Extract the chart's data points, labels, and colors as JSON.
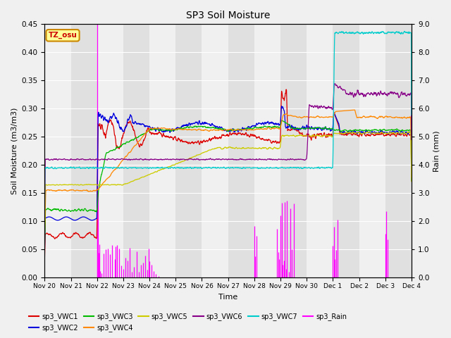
{
  "title": "SP3 Soil Moisture",
  "ylabel_left": "Soil Moisture (m3/m3)",
  "ylabel_right": "Rain (mm)",
  "xlabel": "Time",
  "ylim_left": [
    0.0,
    0.45
  ],
  "ylim_right": [
    0.0,
    9.0
  ],
  "yticks_left": [
    0.0,
    0.05,
    0.1,
    0.15,
    0.2,
    0.25,
    0.3,
    0.35,
    0.4,
    0.45
  ],
  "yticks_right": [
    0.0,
    1.0,
    2.0,
    3.0,
    4.0,
    5.0,
    6.0,
    7.0,
    8.0,
    9.0
  ],
  "background_color": "#f0f0f0",
  "plot_bg_light": "#e8e8e8",
  "plot_bg_dark": "#d0d0d0",
  "colors": {
    "VWC1": "#dd0000",
    "VWC2": "#0000dd",
    "VWC3": "#00bb00",
    "VWC4": "#ff8800",
    "VWC5": "#cccc00",
    "VWC6": "#880088",
    "VWC7": "#00cccc",
    "Rain": "#ff00ff"
  },
  "tz_label": "TZ_osu",
  "tz_bg": "#ffff99",
  "tz_border": "#cc8800",
  "tick_labels": [
    "Nov 20",
    "Nov 21",
    "Nov 22",
    "Nov 23",
    "Nov 24",
    "Nov 25",
    "Nov 26",
    "Nov 27",
    "Nov 28",
    "Nov 29",
    "Nov 30",
    "Dec 1",
    "Dec 2",
    "Dec 3",
    "Dec 4"
  ],
  "legend_row1": [
    "sp3_VWC1",
    "sp3_VWC2",
    "sp3_VWC3",
    "sp3_VWC4",
    "sp3_VWC5",
    "sp3_VWC6"
  ],
  "legend_row2": [
    "sp3_VWC7",
    "sp3_Rain"
  ]
}
